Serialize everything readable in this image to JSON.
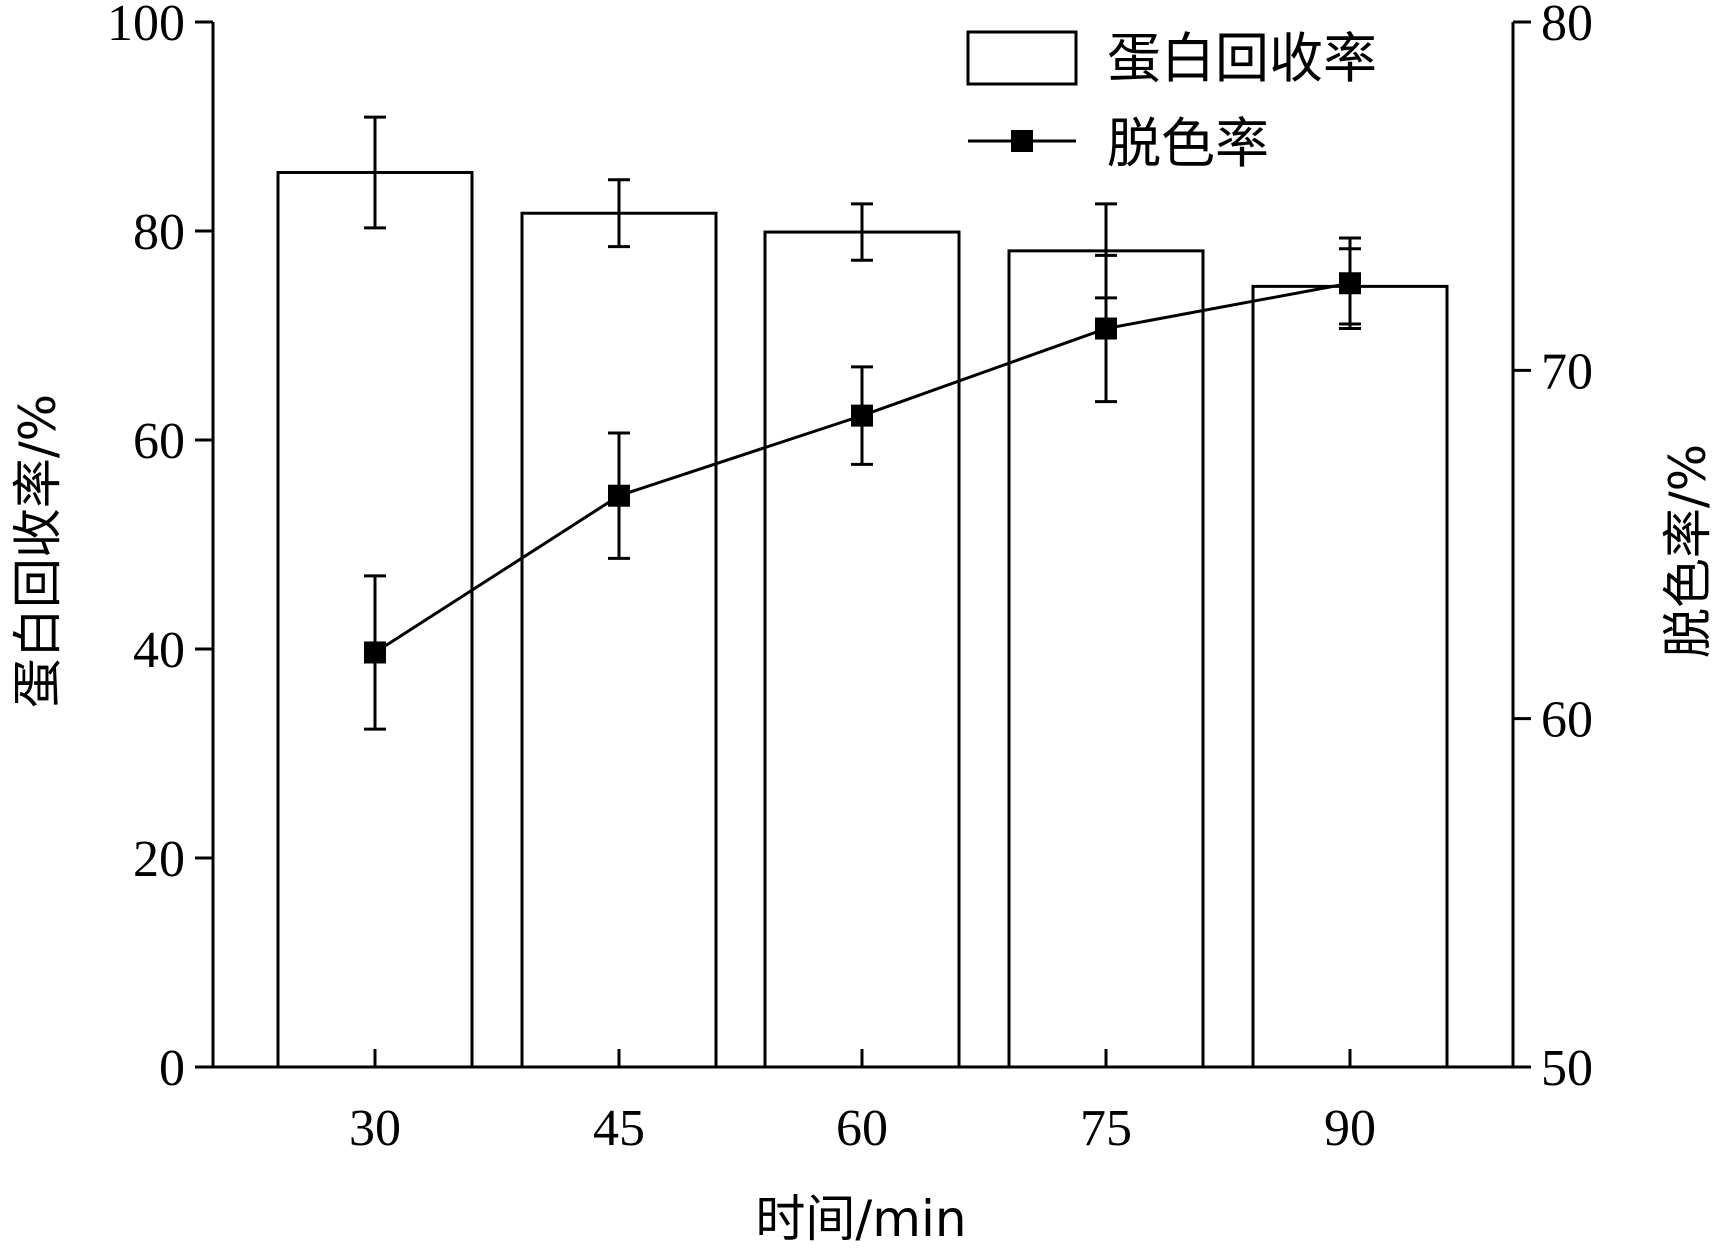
{
  "chart_data": {
    "type": "bar",
    "categories": [
      "30",
      "45",
      "60",
      "75",
      "90"
    ],
    "xlabel": "时间/min",
    "ylabel_left": "蛋白回收率/%",
    "ylabel_right": "脱色率/%",
    "ylim_left": [
      0,
      100
    ],
    "ylim_right": [
      50,
      80
    ],
    "yticks_left": [
      "0",
      "20",
      "40",
      "60",
      "80",
      "100"
    ],
    "yticks_right": [
      "50",
      "60",
      "70",
      "80"
    ],
    "legend_position": "top-right",
    "grid": false,
    "series": [
      {
        "name": "蛋白回收率",
        "type": "bar",
        "axis": "left",
        "values": [
          85.6,
          81.7,
          79.9,
          78.1,
          74.7
        ],
        "errors": [
          5.3,
          3.2,
          2.7,
          4.5,
          3.6
        ],
        "color": "#ffffff",
        "stroke": "#000000"
      },
      {
        "name": "脱色率",
        "type": "line",
        "axis": "right",
        "marker": "square",
        "values": [
          61.9,
          66.4,
          68.7,
          71.2,
          72.5
        ],
        "errors": [
          2.2,
          1.8,
          1.4,
          2.1,
          1.3
        ],
        "color": "#000000"
      }
    ]
  }
}
